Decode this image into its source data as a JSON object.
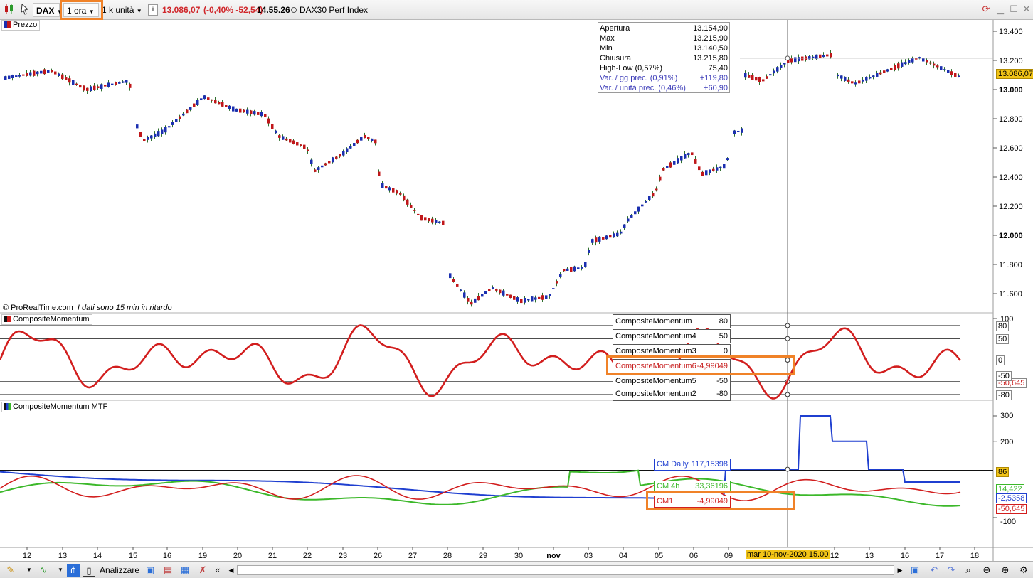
{
  "toolbar": {
    "symbol": "DAX",
    "timeframe": "1 ora",
    "units": "1 k unità",
    "info_glyph": "i",
    "last_price": "13.086,07",
    "change": "(-0,40% -52,54)",
    "time": "14.55.26",
    "instrument_name": "DAX30 Perf Index"
  },
  "price_panel": {
    "label": "Prezzo",
    "footer_source": "© ProRealTime.com",
    "footer_delay": "I dati sono 15 min in ritardo",
    "current_price_label": "13.086,07",
    "y_ticks": [
      "13.400",
      "13.200",
      "13.000",
      "12.800",
      "12.600",
      "12.400",
      "12.200",
      "12.000",
      "11.800",
      "11.600"
    ],
    "ohlc": [
      {
        "label": "Apertura",
        "value": "13.154,90"
      },
      {
        "label": "Max",
        "value": "13.215,90"
      },
      {
        "label": "Min",
        "value": "13.140,50"
      },
      {
        "label": "Chiusura",
        "value": "13.215,80"
      },
      {
        "label": "High-Low (0,57%)",
        "value": "75,40"
      },
      {
        "label": "Var. / gg prec. (0,91%)",
        "value": "+119,80"
      },
      {
        "label": "Var. / unità prec. (0,46%)",
        "value": "+60,90"
      }
    ]
  },
  "cm_panel": {
    "label": "CompositeMomentum",
    "y_ticks": [
      "100",
      "80",
      "50",
      "0",
      "-50",
      "-80"
    ],
    "current_label": "-50,645",
    "rows": [
      {
        "name": "CompositeMomentum",
        "value": "80"
      },
      {
        "name": "CompositeMomentum4",
        "value": "50"
      },
      {
        "name": "CompositeMomentum3",
        "value": "0"
      },
      {
        "name": "CompositeMomentum6",
        "value": "-4,99049"
      },
      {
        "name": "CompositeMomentum5",
        "value": "-50"
      },
      {
        "name": "CompositeMomentum2",
        "value": "-80"
      }
    ]
  },
  "mtf_panel": {
    "label": "CompositeMomentum MTF",
    "y_ticks": [
      "300",
      "200",
      "86",
      "-100"
    ],
    "labels": {
      "green": "14,422",
      "blue": "-2,5358",
      "red": "-50,645"
    },
    "rows": [
      {
        "name": "CM Daily",
        "value": "117,15398"
      },
      {
        "name": "CM 4h",
        "value": "33,36196"
      },
      {
        "name": "CM1",
        "value": "-4,99049"
      }
    ]
  },
  "x_axis": {
    "ticks": [
      "12",
      "13",
      "14",
      "15",
      "16",
      "19",
      "20",
      "21",
      "22",
      "23",
      "26",
      "27",
      "28",
      "29",
      "30",
      "nov",
      "03",
      "04",
      "05",
      "06",
      "09",
      "12",
      "13",
      "16",
      "17",
      "18"
    ],
    "crosshair_label": "mar 10-nov-2020 15.00"
  },
  "statusbar": {
    "analyze_label": "Analizzare"
  },
  "colors": {
    "bull": "#1b2fb0",
    "bear": "#c0171a",
    "cm_red": "#d21e1e",
    "mtf_blue": "#1f3fd0",
    "mtf_green": "#3cb82a",
    "highlight": "#f08228"
  }
}
